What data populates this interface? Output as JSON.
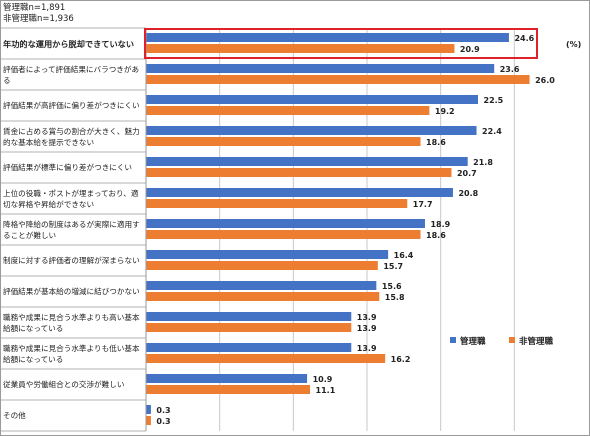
{
  "sample_sizes": [
    "管理職n=1,891",
    "非管理職n=1,936"
  ],
  "unit": "(%)",
  "colors": {
    "manager": "#4472C4",
    "non_manager": "#ED7D31",
    "highlight": "#E0202A",
    "grid": "#c8c8c8"
  },
  "chart_data": {
    "type": "bar",
    "orientation": "horizontal",
    "title": "",
    "xlabel": "",
    "ylabel": "",
    "xlim": [
      0,
      30
    ],
    "grid": true,
    "legend_position": "right",
    "highlighted_category": 0,
    "categories": [
      "年功的な運用から脱却できていない",
      "評価者によって評価結果にバラつきがある",
      "評価結果が高評価に偏り差がつきにくい",
      "賃金に占める賞与の割合が大きく、魅力的な基本給を提示できない",
      "評価結果が標準に偏り差がつきにくい",
      "上位の役職・ポストが埋まっており、適切な昇格や昇給ができない",
      "降格や降給の制度はあるが実際に適用することが難しい",
      "制度に対する評価者の理解が深まらない",
      "評価結果が基本給の増減に結びつかない",
      "職務や成果に見合う水準よりも高い基本給額になっている",
      "職務や成果に見合う水準よりも低い基本給額になっている",
      "従業員や労働組合との交渉が難しい",
      "その他"
    ],
    "series": [
      {
        "name": "管理職",
        "values": [
          24.6,
          23.6,
          22.5,
          22.4,
          21.8,
          20.8,
          18.9,
          16.4,
          15.6,
          13.9,
          13.9,
          10.9,
          0.3
        ]
      },
      {
        "name": "非管理職",
        "values": [
          20.9,
          26.0,
          19.2,
          18.6,
          20.7,
          17.7,
          18.6,
          15.7,
          15.8,
          13.9,
          16.2,
          11.1,
          0.3
        ]
      }
    ]
  }
}
